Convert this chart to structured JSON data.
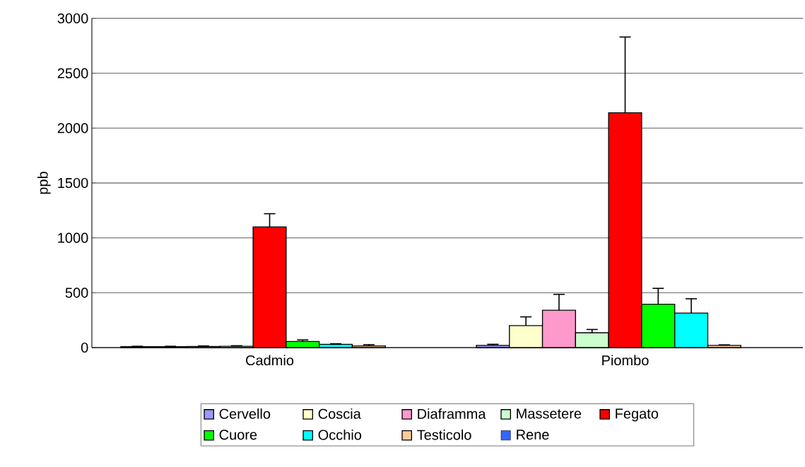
{
  "chart_data": {
    "type": "bar",
    "ylabel": "ppb",
    "categories": [
      "Cadmio",
      "Piombo"
    ],
    "series": [
      {
        "name": "Cervello",
        "color": "#9999ff",
        "values": [
          8,
          20
        ],
        "errors": [
          4,
          10
        ]
      },
      {
        "name": "Coscia",
        "color": "#ffffcc",
        "values": [
          8,
          200
        ],
        "errors": [
          4,
          80
        ]
      },
      {
        "name": "Diaframma",
        "color": "#ff99cc",
        "values": [
          10,
          340
        ],
        "errors": [
          5,
          145
        ]
      },
      {
        "name": "Massetere",
        "color": "#ccffcc",
        "values": [
          12,
          135
        ],
        "errors": [
          5,
          30
        ]
      },
      {
        "name": "Fegato",
        "color": "#ff0000",
        "values": [
          1100,
          2140
        ],
        "errors": [
          120,
          690
        ]
      },
      {
        "name": "Cuore",
        "color": "#00ff00",
        "values": [
          55,
          395
        ],
        "errors": [
          15,
          145
        ]
      },
      {
        "name": "Occhio",
        "color": "#00ffff",
        "values": [
          30,
          315
        ],
        "errors": [
          5,
          130
        ]
      },
      {
        "name": "Testicolo",
        "color": "#ffcc99",
        "values": [
          15,
          20
        ],
        "errors": [
          12,
          5
        ]
      },
      {
        "name": "Rene",
        "color": "#3366ff",
        "values": [
          null,
          null
        ],
        "errors": [
          null,
          null
        ]
      }
    ],
    "ylim": [
      0,
      3000
    ],
    "yticks": [
      0,
      500,
      1000,
      1500,
      2000,
      2500,
      3000
    ],
    "grid": "y",
    "legend": "bottom"
  }
}
